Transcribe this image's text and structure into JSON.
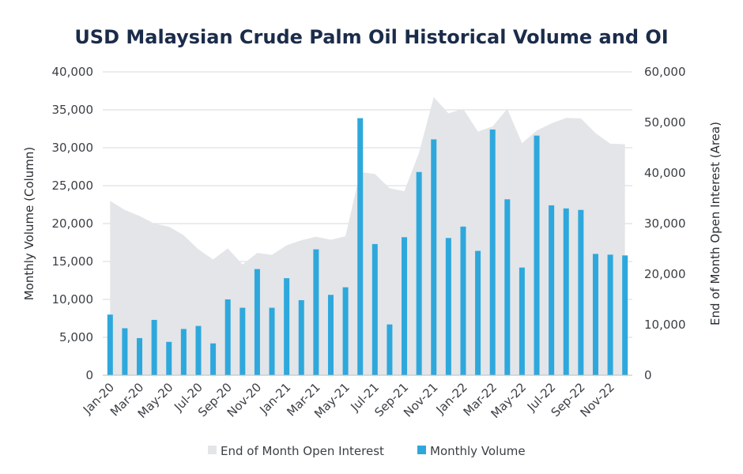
{
  "chart_data": {
    "type": "bar",
    "title": "USD Malaysian Crude Palm Oil Historical Volume and OI",
    "ylabel": "Monthly Volume (Column)",
    "y2label": "End of Month Open Interest (Area)",
    "xlabel": "",
    "ylim": [
      0,
      40000
    ],
    "y2lim": [
      0,
      60000
    ],
    "yticks": [
      "0",
      "5,000",
      "10,000",
      "15,000",
      "20,000",
      "25,000",
      "30,000",
      "35,000",
      "40,000"
    ],
    "y2ticks": [
      "0",
      "10,000",
      "20,000",
      "30,000",
      "40,000",
      "50,000",
      "60,000"
    ],
    "categories": [
      "Jan-20",
      "Feb-20",
      "Mar-20",
      "Apr-20",
      "May-20",
      "Jun-20",
      "Jul-20",
      "Aug-20",
      "Sep-20",
      "Oct-20",
      "Nov-20",
      "Dec-20",
      "Jan-21",
      "Feb-21",
      "Mar-21",
      "Apr-21",
      "May-21",
      "Jun-21",
      "Jul-21",
      "Aug-21",
      "Sep-21",
      "Oct-21",
      "Nov-21",
      "Dec-21",
      "Jan-22",
      "Feb-22",
      "Mar-22",
      "Apr-22",
      "May-22",
      "Jun-22",
      "Jul-22",
      "Aug-22",
      "Sep-22",
      "Oct-22",
      "Nov-22",
      "Dec-22"
    ],
    "tick_labels": [
      "Jan-20",
      "Mar-20",
      "May-20",
      "Jul-20",
      "Sep-20",
      "Nov-20",
      "Jan-21",
      "Mar-21",
      "May-21",
      "Jul-21",
      "Sep-21",
      "Nov-21",
      "Jan-22",
      "Mar-22",
      "May-22",
      "Jul-22",
      "Sep-22",
      "Nov-22"
    ],
    "series": [
      {
        "name": "Monthly Volume",
        "type": "bar",
        "axis": "left",
        "color": "#2ea8dc",
        "values": [
          8000,
          6200,
          4900,
          7300,
          4400,
          6100,
          6500,
          4200,
          10000,
          8900,
          14000,
          8900,
          12800,
          9900,
          16600,
          10600,
          11600,
          33900,
          17300,
          6700,
          18200,
          26800,
          31100,
          18100,
          19600,
          16400,
          32400,
          23200,
          14200,
          31600,
          22400,
          22000,
          21800,
          16000,
          15900,
          15800
        ]
      },
      {
        "name": "End of Month Open Interest",
        "type": "area",
        "axis": "right",
        "color": "#e3e5e8",
        "values": [
          34500,
          32700,
          31500,
          30000,
          29400,
          27700,
          24900,
          22900,
          25100,
          21900,
          24200,
          23800,
          25700,
          26700,
          27400,
          26800,
          27500,
          40200,
          39800,
          37000,
          36400,
          44000,
          55000,
          51800,
          52700,
          48200,
          49200,
          52700,
          45900,
          48400,
          49800,
          50900,
          50800,
          47900,
          45800,
          45700
        ]
      }
    ],
    "legend": {
      "position": "bottom",
      "items": [
        {
          "label": "End of Month Open Interest",
          "color": "#e3e5e8",
          "series": "area"
        },
        {
          "label": "Monthly Volume",
          "color": "#2ea8dc",
          "series": "bar"
        }
      ]
    }
  }
}
